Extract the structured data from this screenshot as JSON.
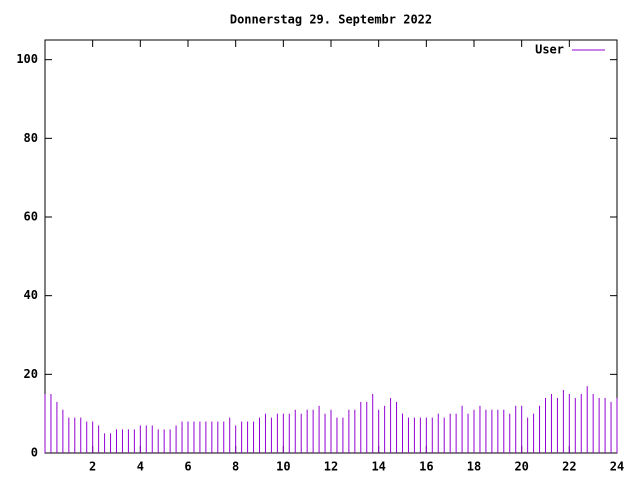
{
  "chart_data": {
    "type": "impulse",
    "title": "Donnerstag 29. Septembr 2022",
    "xlim": [
      0,
      24
    ],
    "xticks": [
      2,
      4,
      6,
      8,
      10,
      12,
      14,
      16,
      18,
      20,
      22,
      24
    ],
    "ylim": [
      0,
      105
    ],
    "yticks": [
      0,
      20,
      40,
      60,
      80,
      100
    ],
    "legend": "top-right",
    "x": [
      0,
      0.25,
      0.5,
      0.75,
      1,
      1.25,
      1.5,
      1.75,
      2,
      2.25,
      2.5,
      2.75,
      3,
      3.25,
      3.5,
      3.75,
      4,
      4.25,
      4.5,
      4.75,
      5,
      5.25,
      5.5,
      5.75,
      6,
      6.25,
      6.5,
      6.75,
      7,
      7.25,
      7.5,
      7.75,
      8,
      8.25,
      8.5,
      8.75,
      9,
      9.25,
      9.5,
      9.75,
      10,
      10.25,
      10.5,
      10.75,
      11,
      11.25,
      11.5,
      11.75,
      12,
      12.25,
      12.5,
      12.75,
      13,
      13.25,
      13.5,
      13.75,
      14,
      14.25,
      14.5,
      14.75,
      15,
      15.25,
      15.5,
      15.75,
      16,
      16.25,
      16.5,
      16.75,
      17,
      17.25,
      17.5,
      17.75,
      18,
      18.25,
      18.5,
      18.75,
      19,
      19.25,
      19.5,
      19.75,
      20,
      20.25,
      20.5,
      20.75,
      21,
      21.25,
      21.5,
      21.75,
      22,
      22.25,
      22.5,
      22.75,
      23,
      23.25,
      23.5,
      23.75,
      24
    ],
    "series": [
      {
        "name": "User",
        "color": "#9400d3",
        "values": [
          15,
          15,
          13,
          11,
          9,
          9,
          9,
          8,
          8,
          7,
          5,
          5,
          6,
          6,
          6,
          6,
          7,
          7,
          7,
          6,
          6,
          6,
          7,
          8,
          8,
          8,
          8,
          8,
          8,
          8,
          8,
          9,
          7,
          8,
          8,
          8,
          9,
          10,
          9,
          10,
          10,
          10,
          11,
          10,
          11,
          11,
          12,
          10,
          11,
          9,
          9,
          11,
          11,
          13,
          13,
          15,
          11,
          12,
          14,
          13,
          10,
          9,
          9,
          9,
          9,
          9,
          10,
          9,
          10,
          10,
          12,
          10,
          11,
          12,
          11,
          11,
          11,
          11,
          10,
          12,
          12,
          9,
          10,
          12,
          14,
          15,
          14,
          16,
          15,
          14,
          15,
          17,
          15,
          14,
          14,
          13,
          14
        ]
      }
    ]
  }
}
